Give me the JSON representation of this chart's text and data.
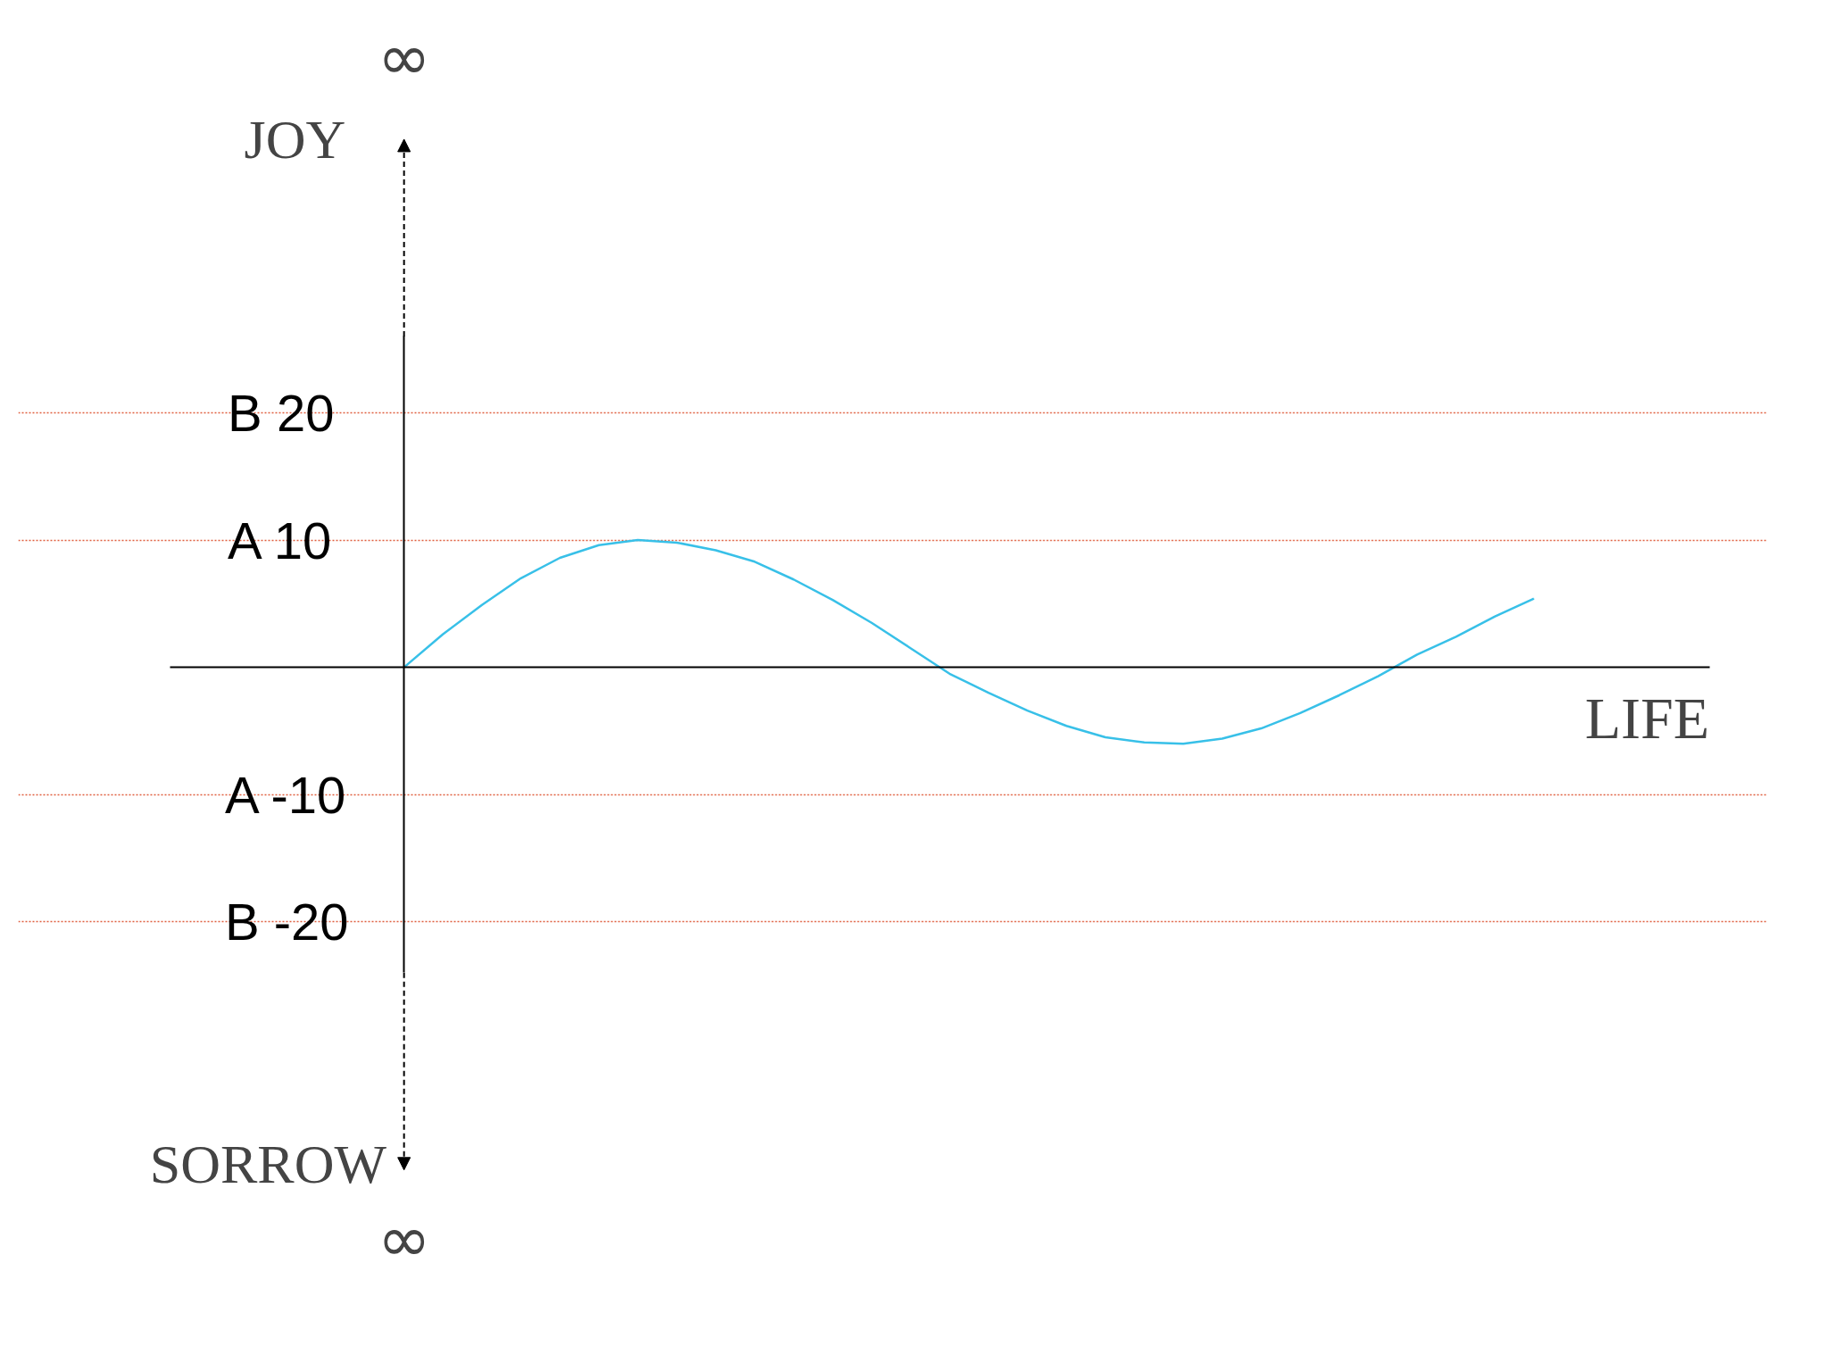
{
  "chart_data": {
    "type": "line",
    "xlabel": "LIFE",
    "annotations": [
      "JOY",
      "∞",
      "SORROW",
      "∞"
    ],
    "categories": [
      null,
      null,
      null,
      null,
      null,
      null,
      null,
      null,
      null,
      null,
      null,
      null,
      null,
      null,
      null,
      null,
      null,
      null,
      null,
      null,
      null,
      null,
      null,
      null,
      null,
      null,
      null,
      null,
      null,
      null
    ],
    "series": [
      {
        "color": "#38c0e8",
        "values": [
          0,
          2.6,
          4.9,
          7.0,
          8.6,
          9.6,
          10.0,
          9.8,
          9.2,
          8.3,
          6.9,
          5.3,
          3.5,
          1.5,
          -0.5,
          -2.0,
          -3.4,
          -4.6,
          -5.5,
          -5.9,
          -6.0,
          -5.6,
          -4.8,
          -3.6,
          -2.2,
          -0.7,
          1.0,
          2.4,
          4.0,
          5.4
        ]
      }
    ],
    "ylim": [
      -24,
      26
    ],
    "yticks": [
      {
        "value": 20,
        "label": "B   20"
      },
      {
        "value": 10,
        "label": "A   10"
      },
      {
        "value": -10,
        "label": "A  -10"
      },
      {
        "value": -20,
        "label": "B  -20"
      }
    ],
    "grid": "y",
    "tick_labels": "y",
    "marker": "none",
    "line_style": "solid"
  }
}
